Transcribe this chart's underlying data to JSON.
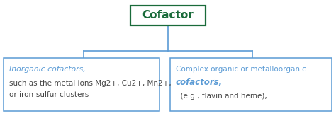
{
  "title": "Cofactor",
  "title_color": "#1a6b3a",
  "title_box_edge_color": "#1a6b3a",
  "left_box_title": "Inorganic cofactors,",
  "left_box_line1": "such as the metal ions Mg2+, Cu2+, Mn2+,",
  "left_box_line2": "or iron-sulfur clusters",
  "right_box_line1": "Complex organic or metalloorganic",
  "right_box_line2": "cofactors,",
  "right_box_line3": "  (e.g., flavin and heme),",
  "box_edge_color": "#5b9bd5",
  "box_text_color_title": "#5b9bd5",
  "box_text_color_body": "#444444",
  "line_color": "#5b9bd5",
  "background_color": "#ffffff",
  "fig_width": 4.74,
  "fig_height": 1.64,
  "dpi": 100
}
